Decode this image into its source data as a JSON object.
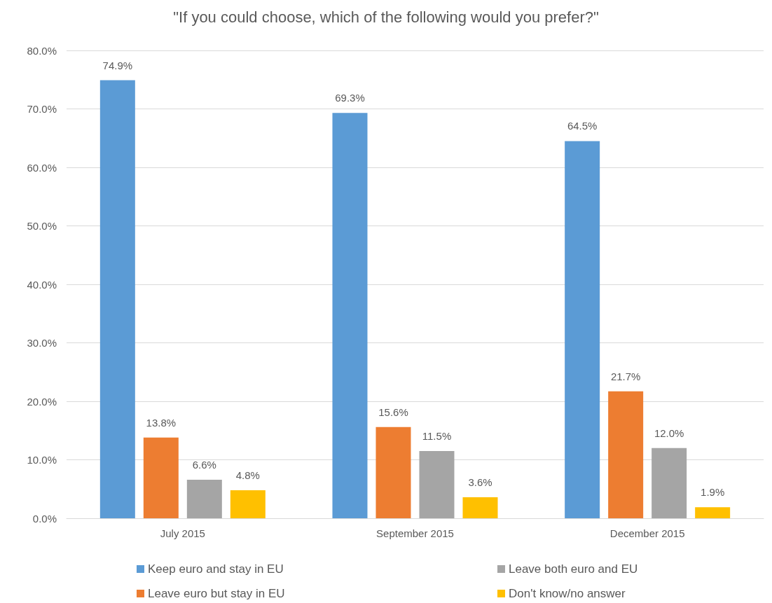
{
  "chart_data": {
    "type": "bar",
    "title": "\"If you could choose, which of the following would you prefer?\"",
    "categories": [
      "July 2015",
      "September 2015",
      "December 2015"
    ],
    "series": [
      {
        "name": "Keep euro and stay in EU",
        "color": "#5b9bd5",
        "values": [
          74.9,
          69.3,
          64.5
        ],
        "value_labels": [
          "74.9%",
          "69.3%",
          "64.5%"
        ]
      },
      {
        "name": "Leave euro but stay in EU",
        "color": "#ed7d31",
        "values": [
          13.8,
          15.6,
          21.7
        ],
        "value_labels": [
          "13.8%",
          "15.6%",
          "21.7%"
        ]
      },
      {
        "name": "Leave both euro and EU",
        "color": "#a5a5a5",
        "values": [
          6.6,
          11.5,
          12.0
        ],
        "value_labels": [
          "6.6%",
          "11.5%",
          "12.0%"
        ]
      },
      {
        "name": "Don't know/no answer",
        "color": "#ffc000",
        "values": [
          4.8,
          3.6,
          1.9
        ],
        "value_labels": [
          "4.8%",
          "3.6%",
          "1.9%"
        ]
      }
    ],
    "ylim": [
      0,
      80
    ],
    "yticks": [
      {
        "value": 0,
        "label": "0.0%"
      },
      {
        "value": 10,
        "label": "10.0%"
      },
      {
        "value": 20,
        "label": "20.0%"
      },
      {
        "value": 30,
        "label": "30.0%"
      },
      {
        "value": 40,
        "label": "40.0%"
      },
      {
        "value": 50,
        "label": "50.0%"
      },
      {
        "value": 60,
        "label": "60.0%"
      },
      {
        "value": 70,
        "label": "70.0%"
      },
      {
        "value": 80,
        "label": "80.0%"
      }
    ],
    "grid": "y",
    "legend": "bottom"
  }
}
